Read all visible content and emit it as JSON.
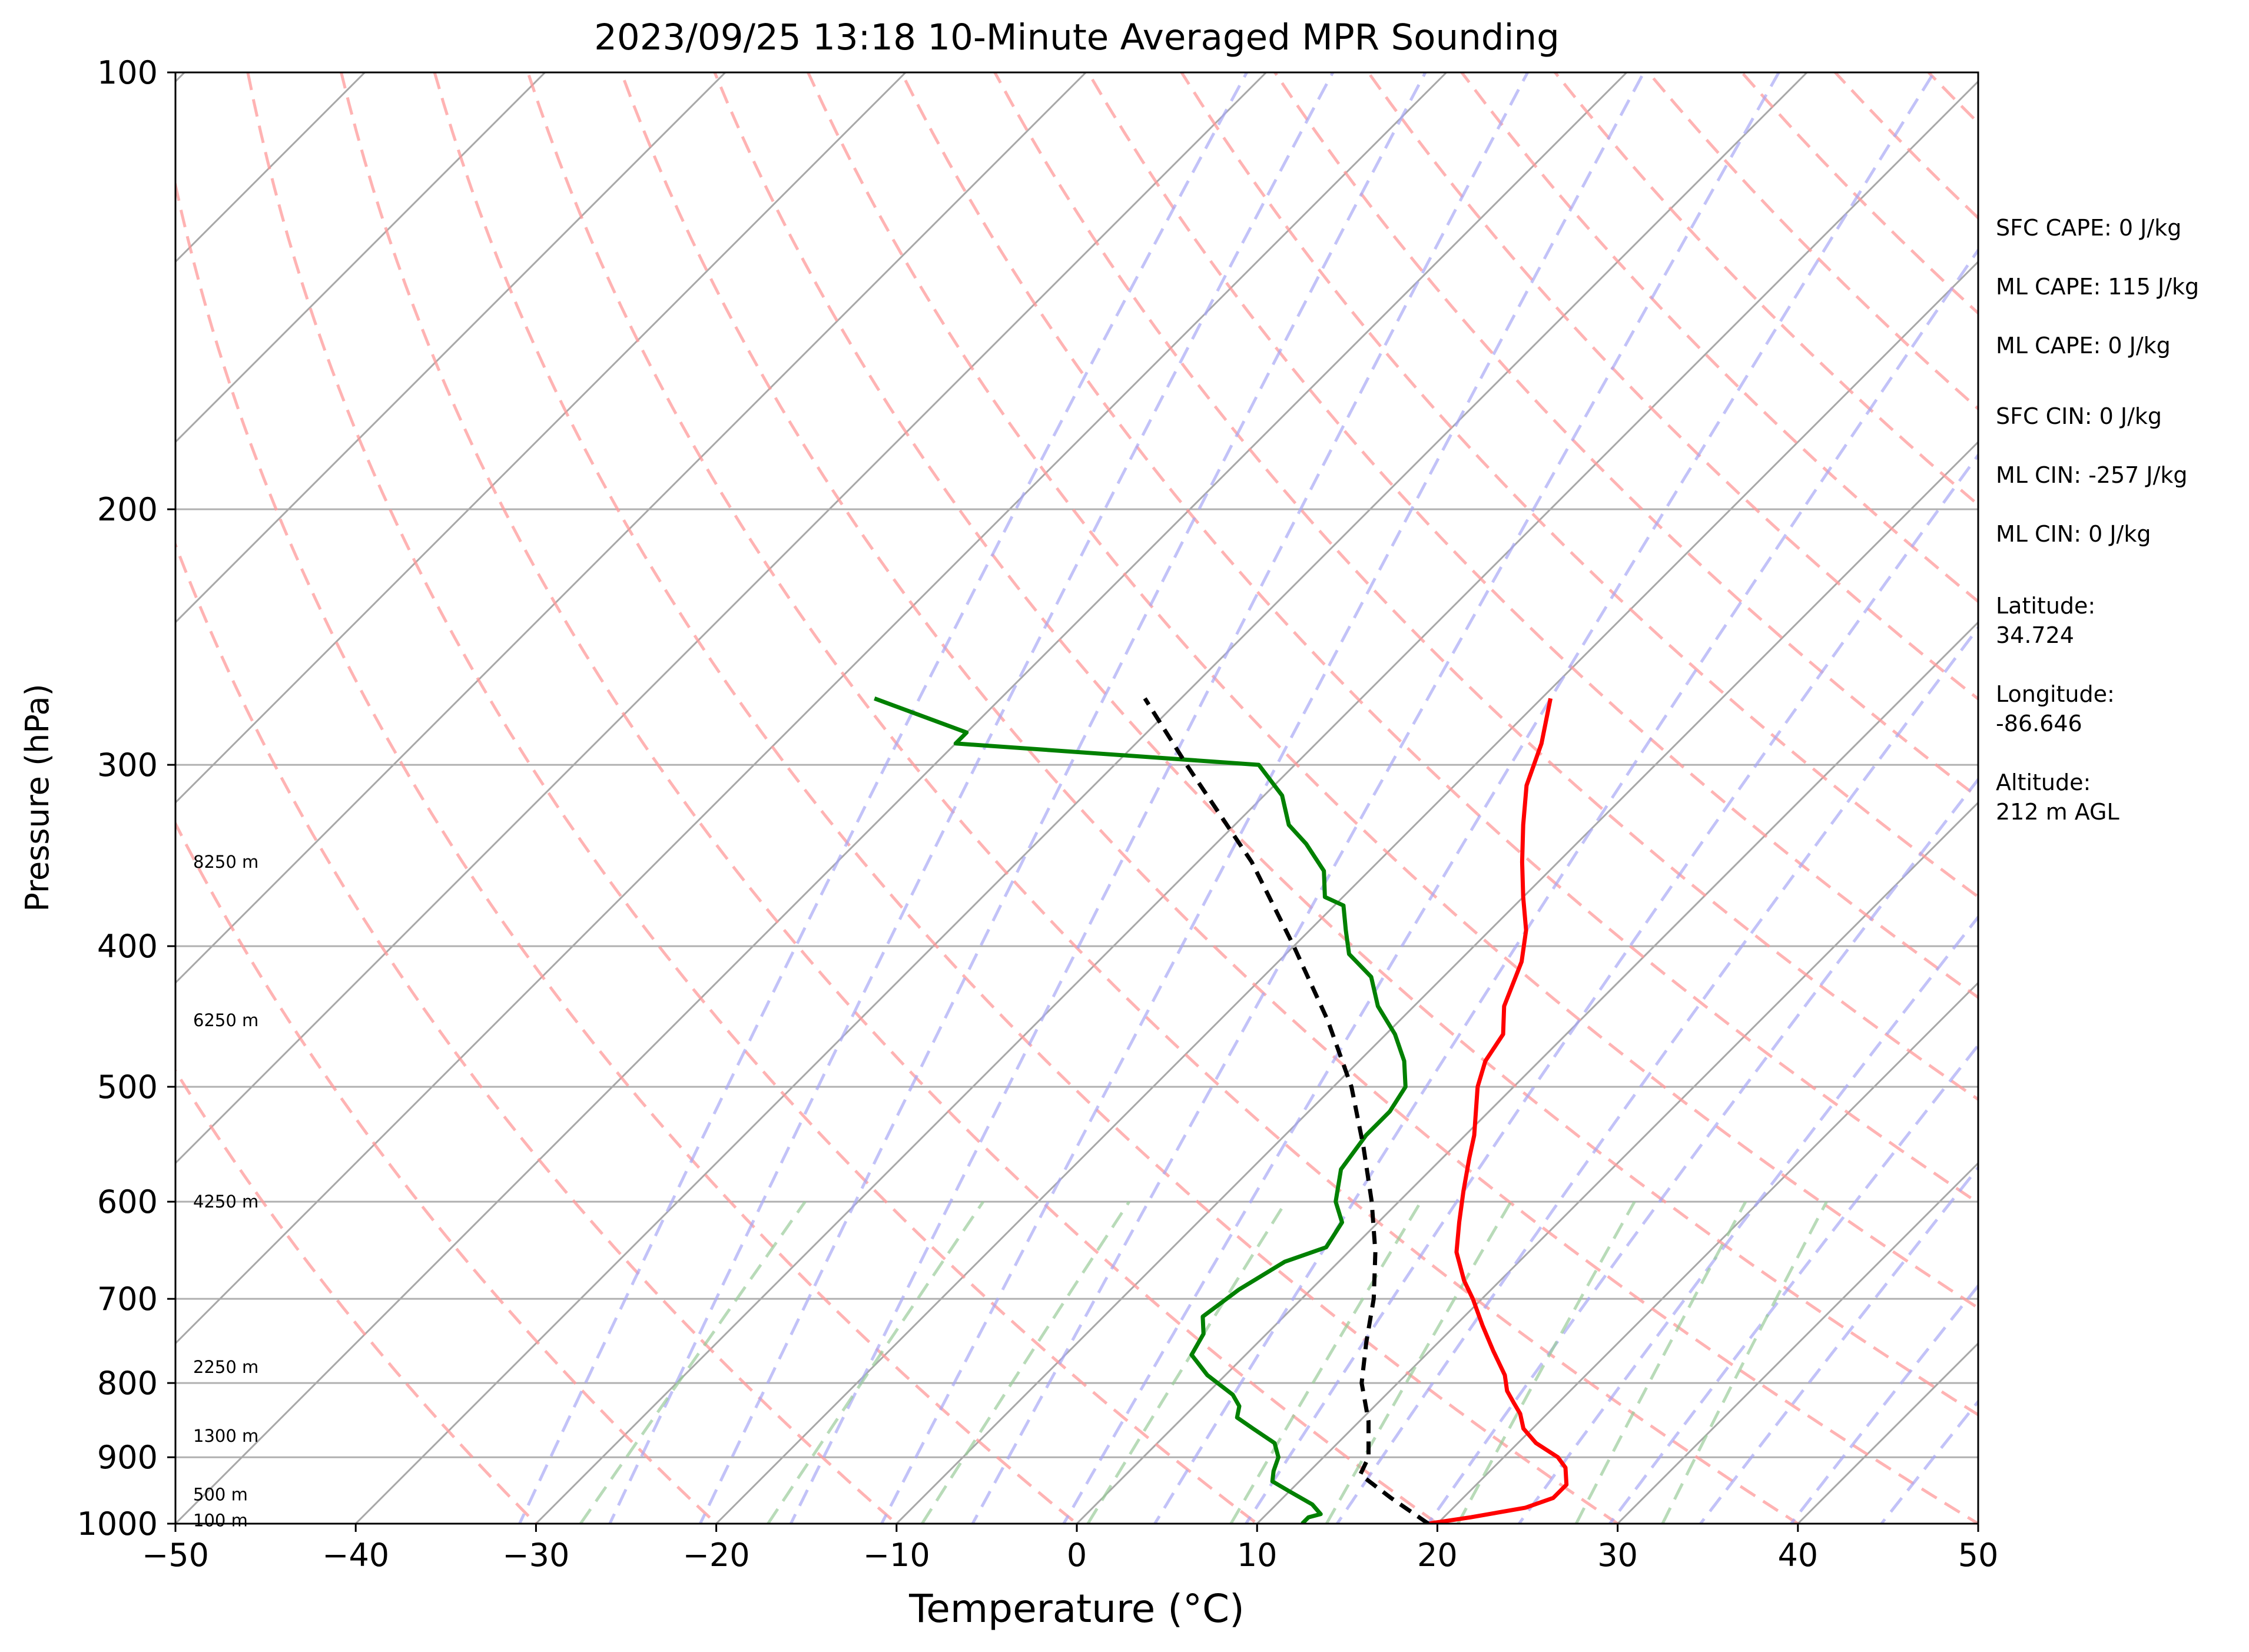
{
  "chart_data": {
    "type": "line",
    "title": "2023/09/25 13:18 10-Minute Averaged MPR Sounding",
    "xlabel": "Temperature (°C)",
    "ylabel": "Pressure (hPa)",
    "xlim": [
      -50,
      50
    ],
    "ylim": [
      1000,
      100
    ],
    "y_scale": "log",
    "skew": true,
    "x_ticks": [
      "−50",
      "−40",
      "−30",
      "−20",
      "−10",
      "0",
      "10",
      "20",
      "30",
      "40",
      "50"
    ],
    "y_ticks": [
      "100",
      "200",
      "300",
      "400",
      "500",
      "600",
      "700",
      "800",
      "900",
      "1000"
    ],
    "grid": true,
    "height_labels": [
      {
        "p": 350,
        "label": "8250 m"
      },
      {
        "p": 450,
        "label": "6250 m"
      },
      {
        "p": 600,
        "label": "4250 m"
      },
      {
        "p": 780,
        "label": "2250 m"
      },
      {
        "p": 870,
        "label": "1300 m"
      },
      {
        "p": 955,
        "label": "500 m"
      },
      {
        "p": 995,
        "label": "100 m"
      }
    ],
    "annotations": [
      "SFC CAPE: 0 J/kg",
      "ML CAPE: 115 J/kg",
      "ML CAPE: 0 J/kg",
      "SFC CIN: 0 J/kg",
      "ML CIN: -257 J/kg",
      "ML CIN: 0 J/kg",
      "Latitude:",
      "34.724",
      "Longitude:",
      "-86.646",
      "Altitude:",
      "212 m AGL"
    ],
    "series": [
      {
        "kind": "temperature",
        "color": "#ff0000",
        "points": [
          [
            1000,
            19.5
          ],
          [
            990,
            21.5
          ],
          [
            975,
            24
          ],
          [
            960,
            25
          ],
          [
            940,
            25
          ],
          [
            915,
            24
          ],
          [
            900,
            23
          ],
          [
            880,
            21
          ],
          [
            860,
            19.5
          ],
          [
            840,
            18.5
          ],
          [
            825,
            17.5
          ],
          [
            810,
            16.5
          ],
          [
            790,
            15.5
          ],
          [
            760,
            13.5
          ],
          [
            730,
            11.5
          ],
          [
            700,
            9.5
          ],
          [
            680,
            8
          ],
          [
            650,
            6
          ],
          [
            620,
            4.5
          ],
          [
            590,
            3
          ],
          [
            560,
            1.5
          ],
          [
            540,
            0.5
          ],
          [
            500,
            -2
          ],
          [
            480,
            -3
          ],
          [
            460,
            -3.5
          ],
          [
            440,
            -5
          ],
          [
            410,
            -6.5
          ],
          [
            390,
            -8
          ],
          [
            370,
            -10
          ],
          [
            350,
            -12
          ],
          [
            330,
            -14
          ],
          [
            310,
            -16
          ],
          [
            290,
            -17.5
          ],
          [
            270,
            -19.5
          ]
        ]
      },
      {
        "kind": "dewpoint",
        "color": "#008000",
        "points": [
          [
            1000,
            12.5
          ],
          [
            990,
            12.5
          ],
          [
            985,
            13
          ],
          [
            970,
            12
          ],
          [
            950,
            10
          ],
          [
            935,
            8.5
          ],
          [
            920,
            8
          ],
          [
            900,
            7.5
          ],
          [
            880,
            6.5
          ],
          [
            860,
            4.5
          ],
          [
            845,
            3
          ],
          [
            830,
            2.5
          ],
          [
            815,
            1.5
          ],
          [
            790,
            -1
          ],
          [
            765,
            -3
          ],
          [
            740,
            -3.5
          ],
          [
            720,
            -4.5
          ],
          [
            690,
            -4
          ],
          [
            660,
            -3
          ],
          [
            645,
            -1.5
          ],
          [
            620,
            -2
          ],
          [
            600,
            -3.5
          ],
          [
            570,
            -5
          ],
          [
            540,
            -5.5
          ],
          [
            520,
            -5.5
          ],
          [
            500,
            -6
          ],
          [
            480,
            -7.5
          ],
          [
            460,
            -9.5
          ],
          [
            440,
            -12
          ],
          [
            420,
            -14
          ],
          [
            405,
            -16.5
          ],
          [
            390,
            -18
          ],
          [
            375,
            -19.5
          ],
          [
            370,
            -21
          ],
          [
            355,
            -22.5
          ],
          [
            340,
            -25
          ],
          [
            330,
            -27
          ],
          [
            315,
            -29
          ],
          [
            300,
            -32
          ],
          [
            290,
            -50
          ],
          [
            285,
            -50
          ],
          [
            270,
            -57
          ]
        ]
      },
      {
        "kind": "parcel",
        "color": "#000000",
        "points": [
          [
            1000,
            19.5
          ],
          [
            960,
            16
          ],
          [
            925,
            13
          ],
          [
            900,
            12.5
          ],
          [
            850,
            10.5
          ],
          [
            800,
            8
          ],
          [
            750,
            6
          ],
          [
            700,
            4
          ],
          [
            650,
            1.5
          ],
          [
            600,
            -1.5
          ],
          [
            550,
            -5
          ],
          [
            500,
            -9
          ],
          [
            450,
            -14
          ],
          [
            400,
            -20
          ],
          [
            350,
            -27
          ],
          [
            300,
            -36
          ],
          [
            270,
            -42
          ]
        ]
      }
    ]
  }
}
